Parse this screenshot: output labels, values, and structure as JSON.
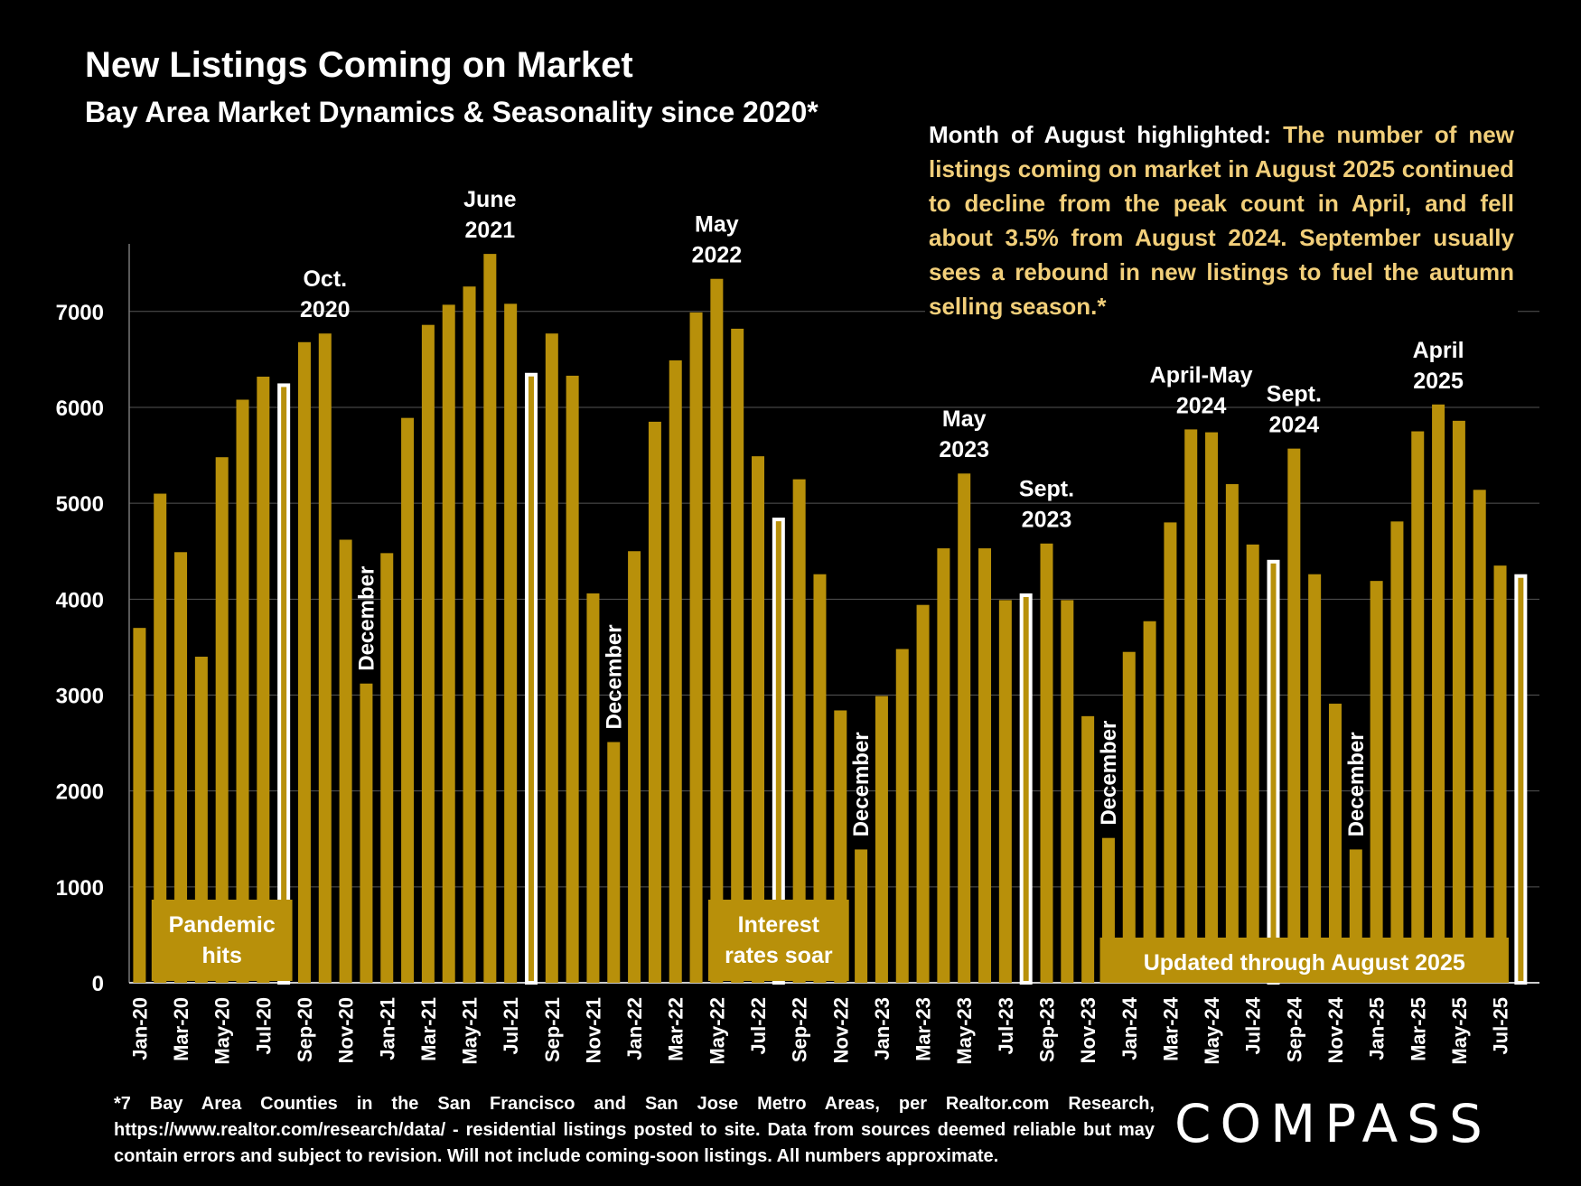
{
  "title": "New Listings Coming on Market",
  "subtitle": "Bay Area Market Dynamics & Seasonality since 2020*",
  "note": {
    "lead": "Month of August highlighted:",
    "body": "The number of new listings coming on market in August 2025 continued to decline from the peak count in April, and fell about 3.5% from August 2024. September usually sees a rebound in new listings to fuel the autumn selling season.*"
  },
  "footnote": "*7 Bay Area Counties in the San Francisco and San Jose Metro Areas, per Realtor.com Research, https://www.realtor.com/research/data/ - residential listings posted to site.  Data from sources deemed reliable but may contain errors and subject to revision. Will not include coming-soon listings. All numbers approximate.",
  "logo": "COMPASS",
  "colors": {
    "bar": "#b8900a",
    "highlight": "#ffffff",
    "background": "#000000",
    "note_text": "#f2cf7a",
    "grid": "#555555"
  },
  "chart_data": {
    "type": "bar",
    "title": "New Listings Coming on Market",
    "xlabel": "",
    "ylabel": "",
    "ylim": [
      0,
      7700
    ],
    "yticks": [
      0,
      1000,
      2000,
      3000,
      4000,
      5000,
      6000,
      7000
    ],
    "grid": true,
    "categories": [
      "Jan-20",
      "Feb-20",
      "Mar-20",
      "Apr-20",
      "May-20",
      "Jun-20",
      "Jul-20",
      "Aug-20",
      "Sep-20",
      "Oct-20",
      "Nov-20",
      "Dec-20",
      "Jan-21",
      "Feb-21",
      "Mar-21",
      "Apr-21",
      "May-21",
      "Jun-21",
      "Jul-21",
      "Aug-21",
      "Sep-21",
      "Oct-21",
      "Nov-21",
      "Dec-21",
      "Jan-22",
      "Feb-22",
      "Mar-22",
      "Apr-22",
      "May-22",
      "Jun-22",
      "Jul-22",
      "Aug-22",
      "Sep-22",
      "Oct-22",
      "Nov-22",
      "Dec-22",
      "Jan-23",
      "Feb-23",
      "Mar-23",
      "Apr-23",
      "May-23",
      "Jun-23",
      "Jul-23",
      "Aug-23",
      "Sep-23",
      "Oct-23",
      "Nov-23",
      "Dec-23",
      "Jan-24",
      "Feb-24",
      "Mar-24",
      "Apr-24",
      "May-24",
      "Jun-24",
      "Jul-24",
      "Aug-24",
      "Sep-24",
      "Oct-24",
      "Nov-24",
      "Dec-24",
      "Jan-25",
      "Feb-25",
      "Mar-25",
      "Apr-25",
      "May-25",
      "Jun-25",
      "Jul-25",
      "Aug-25"
    ],
    "values": [
      3700,
      5100,
      4490,
      3400,
      5480,
      6080,
      6320,
      6250,
      6680,
      6770,
      4620,
      3120,
      4480,
      5890,
      6860,
      7070,
      7260,
      7600,
      7080,
      6360,
      6770,
      6330,
      4060,
      2510,
      4500,
      5850,
      6490,
      6990,
      7340,
      6820,
      5490,
      4850,
      5250,
      4260,
      2840,
      1390,
      2990,
      3480,
      3940,
      4530,
      5310,
      4530,
      3990,
      4060,
      4580,
      3990,
      2780,
      1510,
      3450,
      3770,
      4800,
      5770,
      5740,
      5200,
      4570,
      4410,
      5570,
      4260,
      2910,
      1390,
      4190,
      4810,
      5750,
      6030,
      5860,
      5140,
      4350,
      4260
    ],
    "highlight": [
      "Aug-20",
      "Aug-21",
      "Aug-22",
      "Aug-23",
      "Aug-24",
      "Aug-25"
    ],
    "x_tick_labels": [
      "Jan-20",
      "Mar-20",
      "May-20",
      "Jul-20",
      "Sep-20",
      "Nov-20",
      "Jan-21",
      "Mar-21",
      "May-21",
      "Jul-21",
      "Sep-21",
      "Nov-21",
      "Jan-22",
      "Mar-22",
      "May-22",
      "Jul-22",
      "Sep-22",
      "Nov-22",
      "Jan-23",
      "Mar-23",
      "May-23",
      "Jul-23",
      "Sep-23",
      "Nov-23",
      "Jan-24",
      "Mar-24",
      "May-24",
      "Jul-24",
      "Sep-24",
      "Nov-24",
      "Jan-25",
      "Mar-25",
      "May-25",
      "Jul-25"
    ],
    "annotations": [
      {
        "month": "Oct-20",
        "lines": [
          "Oct.",
          "2020"
        ],
        "kind": "peak"
      },
      {
        "month": "Jun-21",
        "lines": [
          "June",
          "2021"
        ],
        "kind": "peak"
      },
      {
        "month": "May-22",
        "lines": [
          "May",
          "2022"
        ],
        "kind": "peak"
      },
      {
        "month": "May-23",
        "lines": [
          "May",
          "2023"
        ],
        "kind": "peak"
      },
      {
        "month": "Sep-23",
        "lines": [
          "Sept.",
          "2023"
        ],
        "kind": "peak"
      },
      {
        "month": "Apr-24",
        "lines": [
          "April-May",
          "2024"
        ],
        "kind": "peak",
        "span": [
          "Apr-24",
          "May-24"
        ]
      },
      {
        "month": "Sep-24",
        "lines": [
          "Sept.",
          "2024"
        ],
        "kind": "peak"
      },
      {
        "month": "Apr-25",
        "lines": [
          "April",
          "2025"
        ],
        "kind": "peak"
      },
      {
        "month": "Dec-20",
        "lines": [
          "December"
        ],
        "kind": "trough"
      },
      {
        "month": "Dec-21",
        "lines": [
          "December"
        ],
        "kind": "trough"
      },
      {
        "month": "Dec-22",
        "lines": [
          "December"
        ],
        "kind": "trough"
      },
      {
        "month": "Dec-23",
        "lines": [
          "December"
        ],
        "kind": "trough"
      },
      {
        "month": "Dec-24",
        "lines": [
          "December"
        ],
        "kind": "trough"
      }
    ],
    "callouts": [
      {
        "name": "pandemic-hits",
        "lines": [
          "Pandemic",
          "hits"
        ],
        "from": "Feb-20",
        "to": "Aug-20"
      },
      {
        "name": "interest-rates-soar",
        "lines": [
          "Interest",
          "rates soar"
        ],
        "from": "May-22",
        "to": "Nov-22"
      },
      {
        "name": "updated-through",
        "lines": [
          "Updated through August 2025"
        ],
        "from": "Dec-23",
        "to": "Jul-25"
      }
    ]
  }
}
